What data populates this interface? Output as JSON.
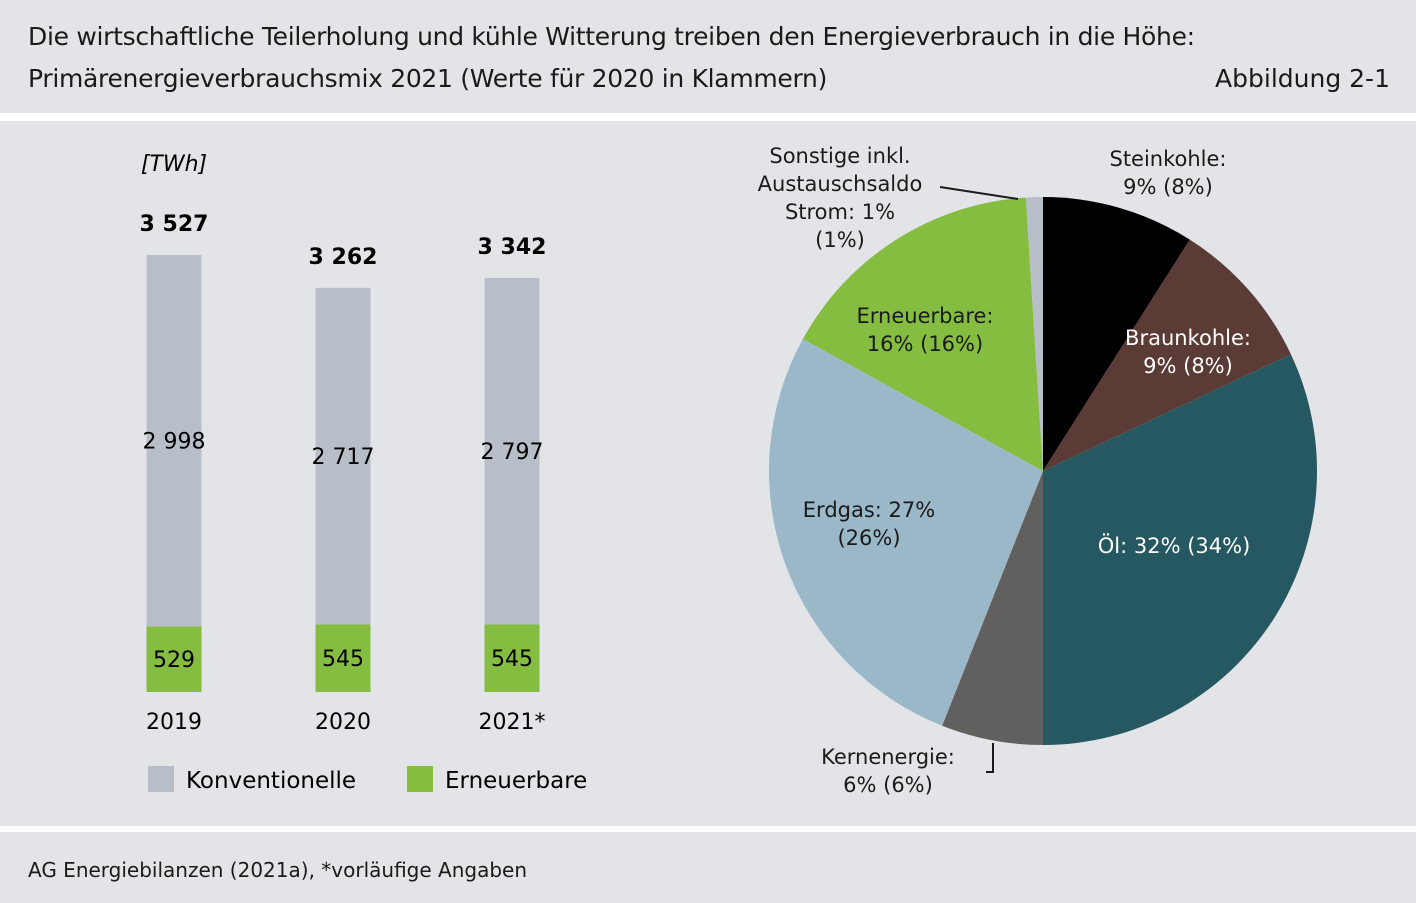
{
  "header": {
    "title_line1": "Die wirtschaftliche Teilerholung und kühle Witterung treiben den Energieverbrauch in die Höhe:",
    "title_line2": "Primärenergieverbrauchsmix 2021 (Werte für 2020 in Klammern)",
    "figure_label": "Abbildung 2-1"
  },
  "footer": {
    "source": "AG Energiebilanzen (2021a), *vorläufige Angaben"
  },
  "colors": {
    "band_background": "#e3e4e8",
    "konventionelle": "#b7bec7",
    "erneuerbare": "#85bd41",
    "steinkohle": "#000000",
    "braunkohle": "#5a3b35",
    "oel": "#255860",
    "kernenergie": "#62605f",
    "erdgas": "#9bb8c9",
    "sonstige": "#b7bec7"
  },
  "chart_data": [
    {
      "type": "bar",
      "stacked": true,
      "unit_label": "[TWh]",
      "categories": [
        "2019",
        "2020",
        "2021*"
      ],
      "series": [
        {
          "name": "Erneuerbare",
          "values": [
            529,
            545,
            545
          ],
          "labels": [
            "529",
            "545",
            "545"
          ]
        },
        {
          "name": "Konventionelle",
          "values": [
            2998,
            2717,
            2797
          ],
          "labels": [
            "2 998",
            "2 717",
            "2 797"
          ]
        }
      ],
      "totals": [
        3527,
        3262,
        3342
      ],
      "total_labels": [
        "3 527",
        "3 262",
        "3 342"
      ],
      "legend": [
        {
          "name": "Konventionelle",
          "color_key": "konventionelle"
        },
        {
          "name": "Erneuerbare",
          "color_key": "erneuerbare"
        }
      ],
      "legend_placement": "bottom",
      "grid": false
    },
    {
      "type": "pie",
      "start": "top, clockwise",
      "slices": [
        {
          "key": "steinkohle",
          "value": 9,
          "label_lines": [
            "Steinkohle:",
            "9% (8%)"
          ]
        },
        {
          "key": "braunkohle",
          "value": 9,
          "label_lines": [
            "Braunkohle:",
            "9% (8%)"
          ]
        },
        {
          "key": "oel",
          "value": 32,
          "label_lines": [
            "Öl: 32% (34%)"
          ]
        },
        {
          "key": "kernenergie",
          "value": 6,
          "label_lines": [
            "Kernenergie:",
            "6% (6%)"
          ]
        },
        {
          "key": "erdgas",
          "value": 27,
          "label_lines": [
            "Erdgas: 27%",
            "(26%)"
          ]
        },
        {
          "key": "erneuerbare",
          "value": 16,
          "label_lines": [
            "Erneuerbare:",
            "16% (16%)"
          ]
        },
        {
          "key": "sonstige",
          "value": 1,
          "label_lines": [
            "Sonstige inkl.",
            "Austauschsaldo",
            "Strom: 1%",
            "(1%)"
          ]
        }
      ]
    }
  ]
}
